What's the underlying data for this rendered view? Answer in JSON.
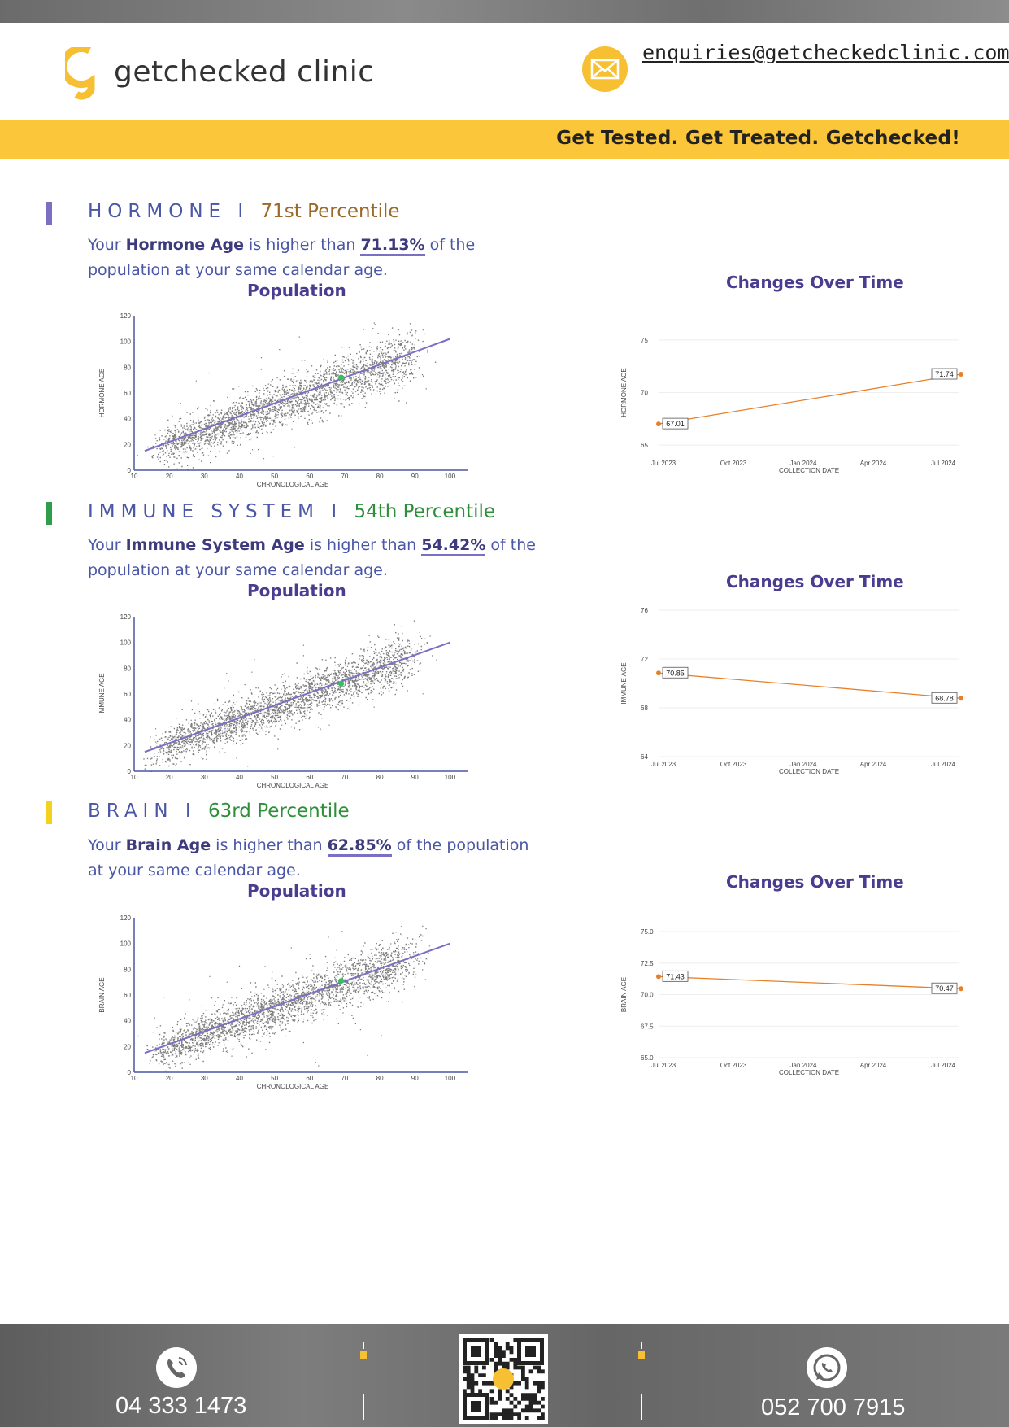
{
  "header": {
    "brand": "getchecked clinic",
    "email": "enquiries@getcheckedclinic.com",
    "tagline": "Get Tested. Get Treated. Getchecked!"
  },
  "colors": {
    "accent_yellow": "#fcc63a",
    "purple": "#4a3d8f",
    "orange": "#e8802a",
    "green": "#2e9e4a"
  },
  "sections": [
    {
      "title": "HORMONE I",
      "percentile": "71st Percentile",
      "desc_pre": "Your ",
      "desc_bold": "Hormone Age",
      "desc_mid": " is higher than ",
      "desc_value": "71.13%",
      "desc_post": " of the population at your same calendar age.",
      "population_title": "Population",
      "changes_title": "Changes Over Time",
      "bar_color": "#7b6fc4",
      "percentile_color": "#9a6a2a"
    },
    {
      "title": "IMMUNE SYSTEM I",
      "percentile": "54th Percentile",
      "desc_pre": "Your ",
      "desc_bold": "Immune System Age",
      "desc_mid": " is higher than ",
      "desc_value": "54.42%",
      "desc_post": " of the population at your same calendar age.",
      "population_title": "Population",
      "changes_title": "Changes Over Time",
      "bar_color": "#2e9e4a",
      "percentile_color": "#2e8f3a"
    },
    {
      "title": "BRAIN I",
      "percentile": "63rd Percentile",
      "desc_pre": "Your ",
      "desc_bold": "Brain Age",
      "desc_mid": " is higher than ",
      "desc_value": "62.85%",
      "desc_post": " of the population at your same calendar age.",
      "population_title": "Population",
      "changes_title": "Changes Over Time",
      "bar_color": "#f2d21c",
      "percentile_color": "#2e8f3a"
    }
  ],
  "chart_data": [
    {
      "type": "scatter",
      "title": "Population",
      "xlabel": "CHRONOLOGICAL AGE",
      "ylabel": "HORMONE AGE",
      "xlim": [
        10,
        105
      ],
      "ylim": [
        0,
        120
      ],
      "x_ticks": [
        10,
        20,
        30,
        40,
        50,
        60,
        70,
        80,
        90,
        100
      ],
      "y_ticks": [
        0,
        20,
        40,
        60,
        80,
        100,
        120
      ],
      "trend_line": {
        "x": [
          13,
          100
        ],
        "y": [
          15,
          102
        ]
      },
      "highlight_point": {
        "x": 69,
        "y": 72
      }
    },
    {
      "type": "line",
      "title": "Changes Over Time",
      "xlabel": "COLLECTION DATE",
      "ylabel": "HORMONE AGE",
      "x_ticks": [
        "Jul 2023",
        "Oct 2023",
        "Jan 2024",
        "Apr 2024",
        "Jul 2024"
      ],
      "y_ticks": [
        "65",
        "70",
        "75"
      ],
      "ylim": [
        64,
        76
      ],
      "points": [
        {
          "x": "Jul 2023",
          "y": 67.01,
          "label": "67.01"
        },
        {
          "x": "Jul 2024",
          "y": 71.74,
          "label": "71.74"
        }
      ]
    },
    {
      "type": "scatter",
      "title": "Population",
      "xlabel": "CHRONOLOGICAL AGE",
      "ylabel": "IMMUNE AGE",
      "xlim": [
        10,
        105
      ],
      "ylim": [
        0,
        120
      ],
      "x_ticks": [
        10,
        20,
        30,
        40,
        50,
        60,
        70,
        80,
        90,
        100
      ],
      "y_ticks": [
        0,
        20,
        40,
        60,
        80,
        100,
        120
      ],
      "trend_line": {
        "x": [
          13,
          100
        ],
        "y": [
          15,
          100
        ]
      },
      "highlight_point": {
        "x": 69,
        "y": 68
      }
    },
    {
      "type": "line",
      "title": "Changes Over Time",
      "xlabel": "COLLECTION DATE",
      "ylabel": "IMMUNE AGE",
      "x_ticks": [
        "Jul 2023",
        "Oct 2023",
        "Jan 2024",
        "Apr 2024",
        "Jul 2024"
      ],
      "y_ticks": [
        "64",
        "68",
        "72",
        "76"
      ],
      "ylim": [
        64,
        76
      ],
      "points": [
        {
          "x": "Jul 2023",
          "y": 70.85,
          "label": "70.85"
        },
        {
          "x": "Jul 2024",
          "y": 68.78,
          "label": "68.78"
        }
      ]
    },
    {
      "type": "scatter",
      "title": "Population",
      "xlabel": "CHRONOLOGICAL AGE",
      "ylabel": "BRAIN AGE",
      "xlim": [
        10,
        105
      ],
      "ylim": [
        0,
        120
      ],
      "x_ticks": [
        10,
        20,
        30,
        40,
        50,
        60,
        70,
        80,
        90,
        100
      ],
      "y_ticks": [
        0,
        20,
        40,
        60,
        80,
        100,
        120
      ],
      "trend_line": {
        "x": [
          13,
          100
        ],
        "y": [
          15,
          100
        ]
      },
      "highlight_point": {
        "x": 69,
        "y": 71
      }
    },
    {
      "type": "line",
      "title": "Changes Over Time",
      "xlabel": "COLLECTION DATE",
      "ylabel": "BRAIN AGE",
      "x_ticks": [
        "Jul 2023",
        "Oct 2023",
        "Jan 2024",
        "Apr 2024",
        "Jul 2024"
      ],
      "y_ticks": [
        "65.0",
        "67.5",
        "70.0",
        "72.5",
        "75.0"
      ],
      "ylim": [
        65,
        75
      ],
      "points": [
        {
          "x": "Jul 2023",
          "y": 71.43,
          "label": "71.43"
        },
        {
          "x": "Jul 2024",
          "y": 70.47,
          "label": "70.47"
        }
      ]
    }
  ],
  "footer": {
    "phone": "04 333 1473",
    "whatsapp": "052 700 7915"
  }
}
